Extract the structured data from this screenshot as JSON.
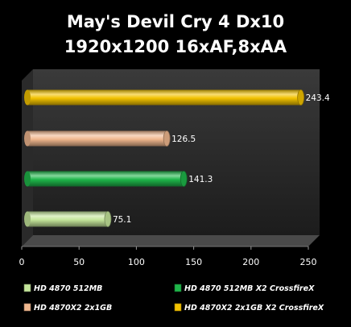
{
  "chart_data": {
    "type": "bar",
    "orientation": "horizontal",
    "title_line1": "May's Devil Cry 4 Dx10",
    "title_line2": "1920x1200 16xAF,8xAA",
    "xlim": [
      0,
      250
    ],
    "xticks": [
      "0",
      "50",
      "100",
      "150",
      "200",
      "250"
    ],
    "grid": false,
    "legend_position": "bottom",
    "bars": [
      {
        "name": "HD 4870X2 2x1GB X2 CrossfireX",
        "value": 243.4,
        "label": "243.4",
        "color": "#f2c200"
      },
      {
        "name": "HD 4870X2 2x1GB",
        "value": 126.5,
        "label": "126.5",
        "color": "#f0b78e"
      },
      {
        "name": "HD 4870 512MB X2 CrossfireX",
        "value": 141.3,
        "label": "141.3",
        "color": "#1fb64a"
      },
      {
        "name": "HD 4870 512MB",
        "value": 75.1,
        "label": "75.1",
        "color": "#c4e59a"
      }
    ],
    "legend": [
      {
        "name": "HD 4870 512MB",
        "color": "#c4e59a"
      },
      {
        "name": "HD 4870 512MB X2 CrossfireX",
        "color": "#1fb64a"
      },
      {
        "name": "HD 4870X2 2x1GB",
        "color": "#f0b78e"
      },
      {
        "name": "HD 4870X2 2x1GB X2 CrossfireX",
        "color": "#f2c200"
      }
    ]
  }
}
